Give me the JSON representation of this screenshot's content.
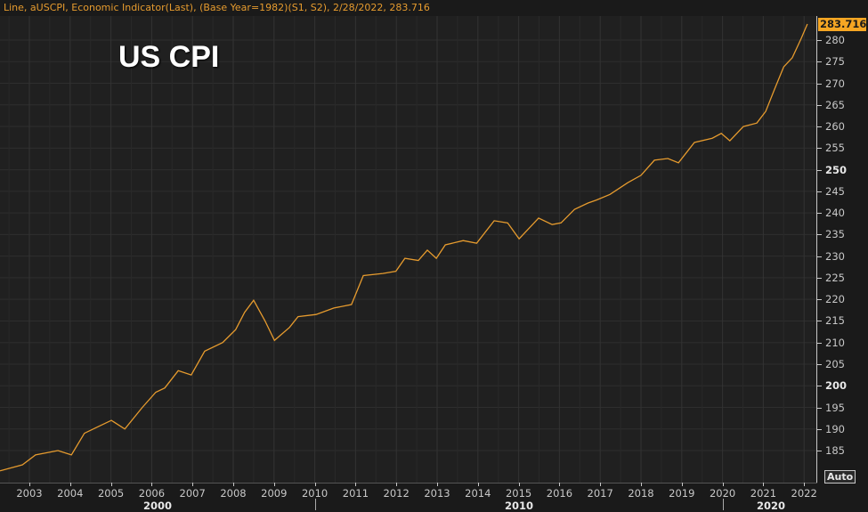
{
  "header": {
    "text": "Line, aUSCPI, Economic Indicator(Last), (Base Year=1982)(S1, S2), 2/28/2022, 283.716"
  },
  "chart_title": "US CPI",
  "last_value_badge": "283.716",
  "auto_button": "Auto",
  "colors": {
    "line": "#e69b2e",
    "badge": "#f5a623",
    "background": "#202020",
    "grid": "#2e2e2e"
  },
  "chart_data": {
    "type": "line",
    "title": "US CPI",
    "subtitle": "Line, aUSCPI, Economic Indicator(Last), (Base Year=1982)(S1, S2), 2/28/2022, 283.716",
    "xlabel": "",
    "ylabel": "",
    "ylim": [
      181,
      284
    ],
    "xlim": [
      2002.3,
      2022.4
    ],
    "grid": true,
    "legend": "none",
    "x_tick_labels": [
      "2003",
      "2004",
      "2005",
      "2006",
      "2007",
      "2008",
      "2009",
      "2010",
      "2011",
      "2012",
      "2013",
      "2014",
      "2015",
      "2016",
      "2017",
      "2018",
      "2019",
      "2020",
      "2021",
      "2022"
    ],
    "x_decade_labels": [
      "2000",
      "2010",
      "2020"
    ],
    "y_tick_labels": [
      "185",
      "190",
      "195",
      "200",
      "205",
      "210",
      "215",
      "220",
      "225",
      "230",
      "235",
      "240",
      "245",
      "250",
      "255",
      "260",
      "265",
      "270",
      "275",
      "280"
    ],
    "last_value": 283.716,
    "last_date": "2/28/2022",
    "series": [
      {
        "name": "aUSCPI",
        "x": [
          2002.28,
          2002.83,
          2003.15,
          2003.7,
          2004.03,
          2004.35,
          2004.68,
          2005.01,
          2005.34,
          2005.77,
          2006.1,
          2006.32,
          2006.65,
          2006.97,
          2007.3,
          2007.74,
          2008.06,
          2008.28,
          2008.5,
          2008.78,
          2009.01,
          2009.38,
          2009.59,
          2010.03,
          2010.47,
          2010.9,
          2011.19,
          2011.67,
          2011.99,
          2012.21,
          2012.54,
          2012.76,
          2012.98,
          2013.2,
          2013.64,
          2013.97,
          2014.4,
          2014.73,
          2015.01,
          2015.27,
          2015.49,
          2015.82,
          2016.04,
          2016.37,
          2016.7,
          2016.91,
          2017.24,
          2017.68,
          2018.0,
          2018.33,
          2018.66,
          2018.92,
          2019.31,
          2019.75,
          2019.97,
          2020.18,
          2020.51,
          2020.84,
          2021.06,
          2021.28,
          2021.5,
          2021.71,
          2021.93,
          2022.08
        ],
        "values": [
          180.3,
          181.7,
          184.0,
          185.0,
          184.0,
          189.0,
          190.5,
          192.0,
          190.0,
          195.0,
          198.5,
          199.5,
          203.5,
          202.5,
          208.0,
          210.0,
          213.0,
          217.0,
          219.8,
          215.0,
          210.5,
          213.5,
          216.0,
          216.5,
          218.0,
          218.8,
          225.5,
          226.0,
          226.5,
          229.5,
          229.0,
          231.4,
          229.5,
          232.6,
          233.6,
          233.0,
          238.2,
          237.7,
          234.0,
          236.6,
          238.8,
          237.3,
          237.7,
          240.8,
          242.3,
          243.0,
          244.3,
          247.0,
          248.7,
          252.2,
          252.6,
          251.6,
          256.3,
          257.3,
          258.4,
          256.7,
          260.0,
          260.8,
          263.5,
          268.7,
          273.8,
          275.9,
          280.4,
          283.7
        ]
      }
    ]
  }
}
